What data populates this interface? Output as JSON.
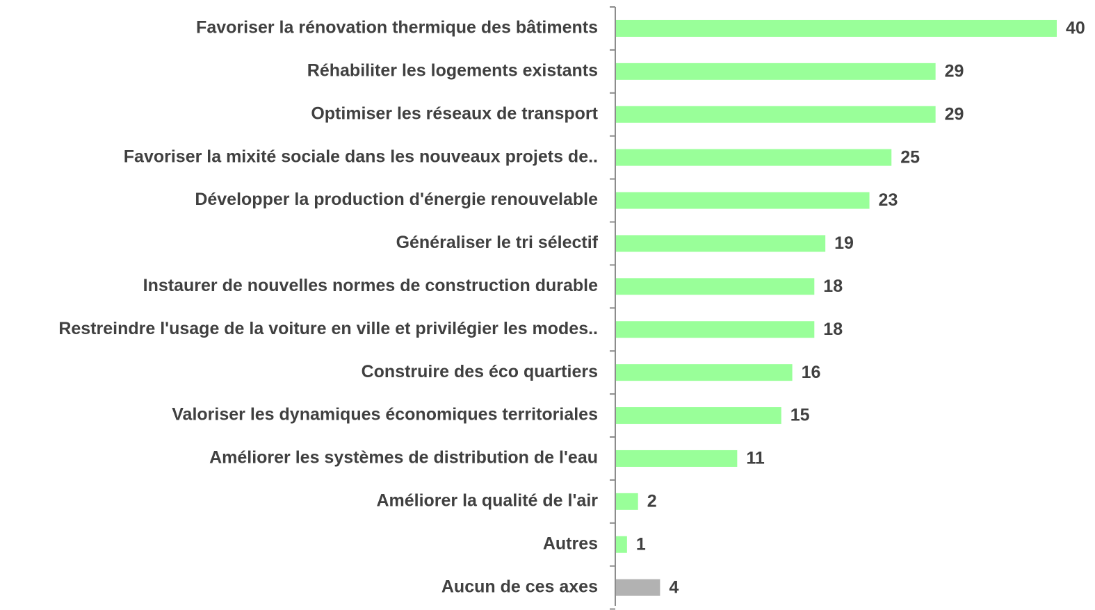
{
  "chart_data": {
    "type": "barh",
    "categories": [
      "Favoriser la rénovation thermique des bâtiments",
      "Réhabiliter les logements existants",
      "Optimiser les réseaux de transport",
      "Favoriser la mixité sociale dans les nouveaux projets de..",
      "Développer la production d'énergie renouvelable",
      "Généraliser le tri sélectif",
      "Instaurer de nouvelles normes de construction durable",
      "Restreindre l'usage de la voiture en ville et privilégier les modes..",
      "Construire des éco quartiers",
      "Valoriser les dynamiques économiques territoriales",
      "Améliorer les systèmes de distribution de l'eau",
      "Améliorer la qualité de l'air",
      "Autres",
      "Aucun de ces axes"
    ],
    "values": [
      40,
      29,
      29,
      25,
      23,
      19,
      18,
      18,
      16,
      15,
      11,
      2,
      1,
      4
    ],
    "colors": [
      "#99ff99",
      "#99ff99",
      "#99ff99",
      "#99ff99",
      "#99ff99",
      "#99ff99",
      "#99ff99",
      "#99ff99",
      "#99ff99",
      "#99ff99",
      "#99ff99",
      "#99ff99",
      "#99ff99",
      "#b2b2b2"
    ]
  }
}
